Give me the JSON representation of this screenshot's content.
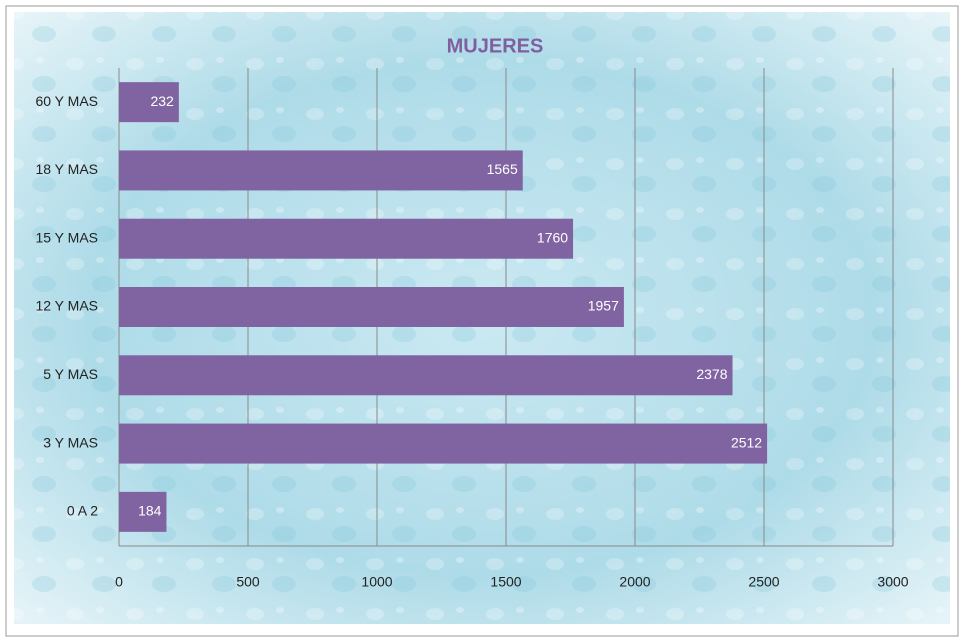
{
  "chart_data": {
    "type": "barh",
    "title": "MUJERES",
    "categories": [
      "60 Y MAS",
      "18 Y MAS",
      "15 Y MAS",
      "12 Y MAS",
      "5 Y MAS",
      "3 Y MAS",
      "0 A 2"
    ],
    "values": [
      232,
      1565,
      1760,
      1957,
      2378,
      2512,
      184
    ],
    "color": "#8064a2",
    "xlim": [
      0,
      3000
    ],
    "xticks": [
      0,
      500,
      1000,
      1500,
      2000,
      2500,
      3000
    ],
    "grid": true
  }
}
